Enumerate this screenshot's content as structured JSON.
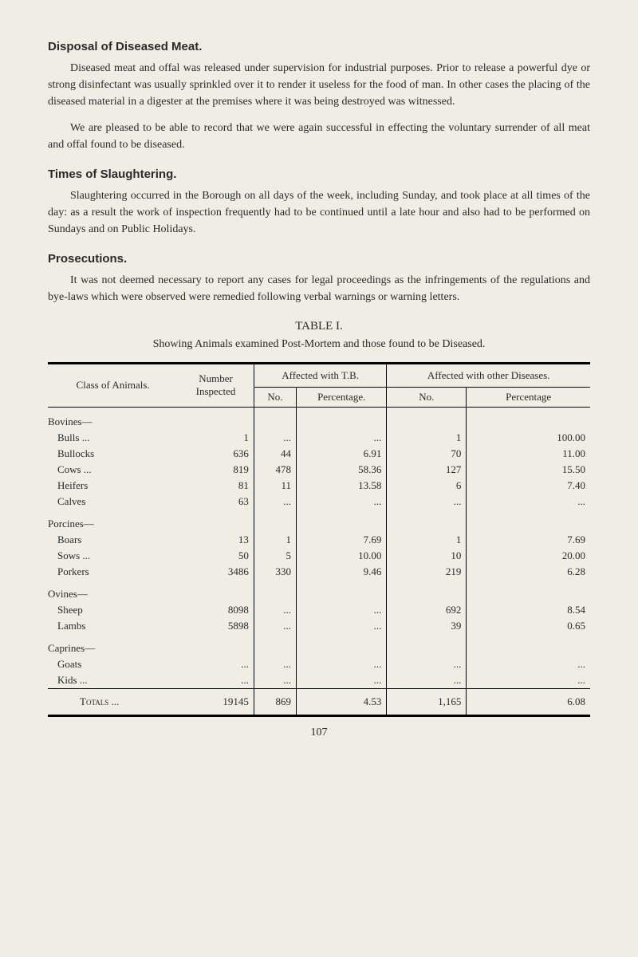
{
  "sections": [
    {
      "heading": "Disposal of Diseased Meat.",
      "paragraphs": [
        "Diseased meat and offal was released under supervision for industrial purposes. Prior to release a powerful dye or strong disinfectant was usually sprinkled over it to render it useless for the food of man. In other cases the placing of the diseased material in a digester at the premises where it was being destroyed was witnessed.",
        "We are pleased to be able to record that we were again successful in effecting the voluntary surrender of all meat and offal found to be diseased."
      ]
    },
    {
      "heading": "Times of Slaughtering.",
      "paragraphs": [
        "Slaughtering occurred in the Borough on all days of the week, including Sunday, and took place at all times of the day: as a result the work of inspection frequently had to be continued until a late hour and also had to be performed on Sundays and on Public Holidays."
      ]
    },
    {
      "heading": "Prosecutions.",
      "paragraphs": [
        "It was not deemed necessary to report any cases for legal proceedings as the infringements of the regulations and bye-laws which were observed were remedied following verbal warnings or warning letters."
      ]
    }
  ],
  "table": {
    "title": "TABLE I.",
    "subtitle": "Showing Animals examined Post-Mortem and those found to be Diseased.",
    "header": {
      "class": "Class of Animals.",
      "number": "Number Inspected",
      "tb": "Affected with T.B.",
      "other": "Affected with other Diseases.",
      "no": "No.",
      "pct": "Percentage.",
      "pct2": "Percentage"
    },
    "groups": [
      {
        "name": "Bovines—",
        "rows": [
          {
            "name": "Bulls ...",
            "inspected": "1",
            "tb_no": "...",
            "tb_pct": "...",
            "other_no": "1",
            "other_pct": "100.00"
          },
          {
            "name": "Bullocks",
            "inspected": "636",
            "tb_no": "44",
            "tb_pct": "6.91",
            "other_no": "70",
            "other_pct": "11.00"
          },
          {
            "name": "Cows ...",
            "inspected": "819",
            "tb_no": "478",
            "tb_pct": "58.36",
            "other_no": "127",
            "other_pct": "15.50"
          },
          {
            "name": "Heifers",
            "inspected": "81",
            "tb_no": "11",
            "tb_pct": "13.58",
            "other_no": "6",
            "other_pct": "7.40"
          },
          {
            "name": "Calves",
            "inspected": "63",
            "tb_no": "...",
            "tb_pct": "...",
            "other_no": "...",
            "other_pct": "..."
          }
        ]
      },
      {
        "name": "Porcines—",
        "rows": [
          {
            "name": "Boars",
            "inspected": "13",
            "tb_no": "1",
            "tb_pct": "7.69",
            "other_no": "1",
            "other_pct": "7.69"
          },
          {
            "name": "Sows ...",
            "inspected": "50",
            "tb_no": "5",
            "tb_pct": "10.00",
            "other_no": "10",
            "other_pct": "20.00"
          },
          {
            "name": "Porkers",
            "inspected": "3486",
            "tb_no": "330",
            "tb_pct": "9.46",
            "other_no": "219",
            "other_pct": "6.28"
          }
        ]
      },
      {
        "name": "Ovines—",
        "rows": [
          {
            "name": "Sheep",
            "inspected": "8098",
            "tb_no": "...",
            "tb_pct": "...",
            "other_no": "692",
            "other_pct": "8.54"
          },
          {
            "name": "Lambs",
            "inspected": "5898",
            "tb_no": "...",
            "tb_pct": "...",
            "other_no": "39",
            "other_pct": "0.65"
          }
        ]
      },
      {
        "name": "Caprines—",
        "rows": [
          {
            "name": "Goats",
            "inspected": "...",
            "tb_no": "...",
            "tb_pct": "...",
            "other_no": "...",
            "other_pct": "..."
          },
          {
            "name": "Kids ...",
            "inspected": "...",
            "tb_no": "...",
            "tb_pct": "...",
            "other_no": "...",
            "other_pct": "..."
          }
        ]
      }
    ],
    "totals": {
      "name": "Totals ...",
      "inspected": "19145",
      "tb_no": "869",
      "tb_pct": "4.53",
      "other_no": "1,165",
      "other_pct": "6.08"
    }
  },
  "page_number": "107",
  "style": {
    "background_color": "#f0ede4",
    "text_color": "#2a2a2a",
    "body_fontsize": 14,
    "heading_fontsize": 15,
    "table_fontsize": 13
  }
}
